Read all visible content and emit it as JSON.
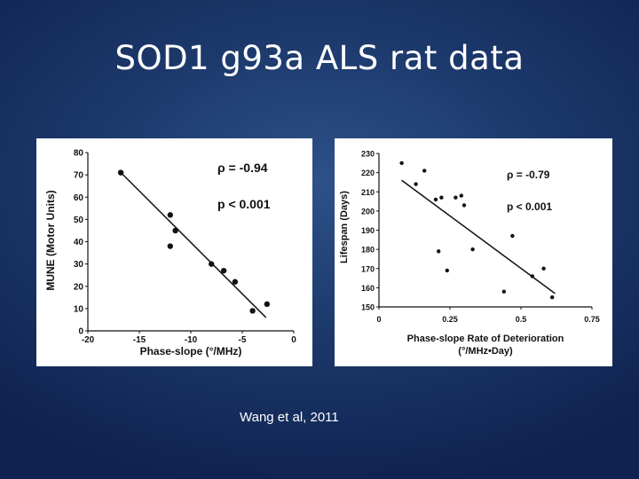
{
  "slide": {
    "title": "SOD1 g93a ALS rat data",
    "citation": "Wang et al, 2011"
  },
  "colors": {
    "background": "#1d3a6d",
    "panel": "#ffffff",
    "ink": "#111111"
  },
  "chart_data": [
    {
      "type": "scatter",
      "xlabel": "Phase-slope (°/MHz)",
      "ylabel": "MUNE (Motor Units)",
      "xlim": [
        -20,
        0
      ],
      "ylim": [
        0,
        80
      ],
      "xticks": [
        -20,
        -15,
        -10,
        -5,
        0
      ],
      "yticks": [
        0,
        10,
        20,
        30,
        40,
        50,
        60,
        70,
        80
      ],
      "annotations": [
        "ρ = -0.94",
        "p < 0.001"
      ],
      "series": [
        {
          "x": [
            -16.8,
            -12.0,
            -12.0,
            -11.5,
            -8.0,
            -6.8,
            -5.7,
            -4.0,
            -2.6
          ],
          "y": [
            71,
            52,
            38,
            45,
            30,
            27,
            22,
            9,
            12
          ]
        }
      ],
      "trendline": {
        "x": [
          -17,
          -2.7
        ],
        "y": [
          72,
          6
        ]
      }
    },
    {
      "type": "scatter",
      "xlabel": "Phase-slope Rate of Deterioration",
      "xlabel2": "(°/MHz•Day)",
      "ylabel": "Lifespan (Days)",
      "xlim": [
        0,
        0.75
      ],
      "ylim": [
        150,
        230
      ],
      "xticks": [
        "0",
        "0.25",
        "0.5",
        "0.75"
      ],
      "yticks": [
        150,
        160,
        170,
        180,
        190,
        200,
        210,
        220,
        230
      ],
      "annotations": [
        "ρ = -0.79",
        "p < 0.001"
      ],
      "series": [
        {
          "x": [
            0.08,
            0.13,
            0.16,
            0.2,
            0.22,
            0.21,
            0.24,
            0.27,
            0.29,
            0.3,
            0.33,
            0.44,
            0.47,
            0.54,
            0.58,
            0.61
          ],
          "y": [
            225,
            214,
            221,
            206,
            207,
            179,
            169,
            207,
            208,
            203,
            180,
            158,
            187,
            166,
            170,
            155
          ]
        }
      ],
      "trendline": {
        "x": [
          0.08,
          0.62
        ],
        "y": [
          216,
          157
        ]
      }
    }
  ]
}
